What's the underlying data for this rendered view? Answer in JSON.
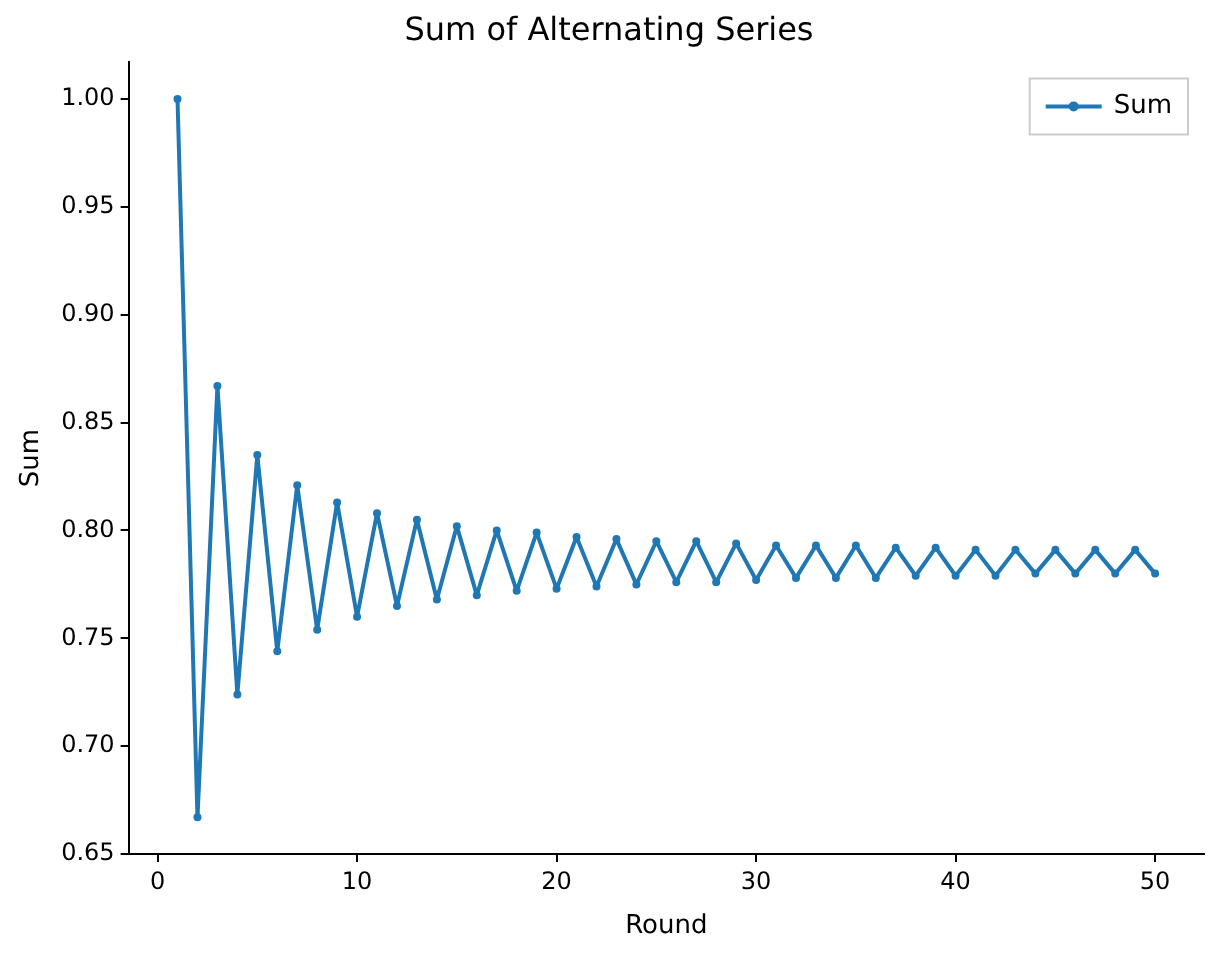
{
  "chart_data": {
    "type": "line",
    "title": "Sum of Alternating Series",
    "xlabel": "Round",
    "ylabel": "Sum",
    "x": [
      1,
      2,
      3,
      4,
      5,
      6,
      7,
      8,
      9,
      10,
      11,
      12,
      13,
      14,
      15,
      16,
      17,
      18,
      19,
      20,
      21,
      22,
      23,
      24,
      25,
      26,
      27,
      28,
      29,
      30,
      31,
      32,
      33,
      34,
      35,
      36,
      37,
      38,
      39,
      40,
      41,
      42,
      43,
      44,
      45,
      46,
      47,
      48,
      49,
      50
    ],
    "series": [
      {
        "name": "Sum",
        "color": "#1f77b4",
        "values": [
          1.0,
          0.667,
          0.867,
          0.724,
          0.835,
          0.744,
          0.821,
          0.754,
          0.813,
          0.76,
          0.808,
          0.765,
          0.805,
          0.768,
          0.802,
          0.77,
          0.8,
          0.772,
          0.799,
          0.773,
          0.797,
          0.774,
          0.796,
          0.775,
          0.795,
          0.776,
          0.795,
          0.776,
          0.794,
          0.777,
          0.793,
          0.778,
          0.793,
          0.778,
          0.793,
          0.778,
          0.792,
          0.779,
          0.792,
          0.779,
          0.791,
          0.779,
          0.791,
          0.78,
          0.791,
          0.78,
          0.791,
          0.78,
          0.791,
          0.78
        ]
      }
    ],
    "xlim": [
      -1.45,
      52.45
    ],
    "ylim": [
      0.65,
      1.017
    ],
    "xticks": [
      0,
      10,
      20,
      30,
      40,
      50
    ],
    "yticks": [
      {
        "value": 0.65,
        "label": "0.65"
      },
      {
        "value": 0.7,
        "label": "0.70"
      },
      {
        "value": 0.75,
        "label": "0.75"
      },
      {
        "value": 0.8,
        "label": "0.80"
      },
      {
        "value": 0.85,
        "label": "0.85"
      },
      {
        "value": 0.9,
        "label": "0.90"
      },
      {
        "value": 0.95,
        "label": "0.95"
      },
      {
        "value": 1.0,
        "label": "1.00"
      }
    ],
    "grid": false,
    "legend": "top right",
    "marker": "circle",
    "line_style": "solid"
  }
}
